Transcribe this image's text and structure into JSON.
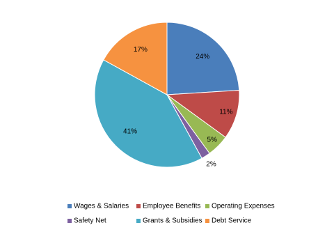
{
  "chart_data": {
    "type": "pie",
    "categories": [
      "Wages & Salaries",
      "Employee Benefits",
      "Operating Expenses",
      "Safety Net",
      "Grants & Subsidies",
      "Debt Service"
    ],
    "values": [
      24,
      11,
      5,
      2,
      41,
      17
    ],
    "value_labels": [
      "24%",
      "11%",
      "5%",
      "2%",
      "41%",
      "17%"
    ],
    "colors": [
      "#4a7ebb",
      "#be4b48",
      "#98b954",
      "#7d60a0",
      "#46aac5",
      "#f69240"
    ],
    "legend": "bottom"
  }
}
